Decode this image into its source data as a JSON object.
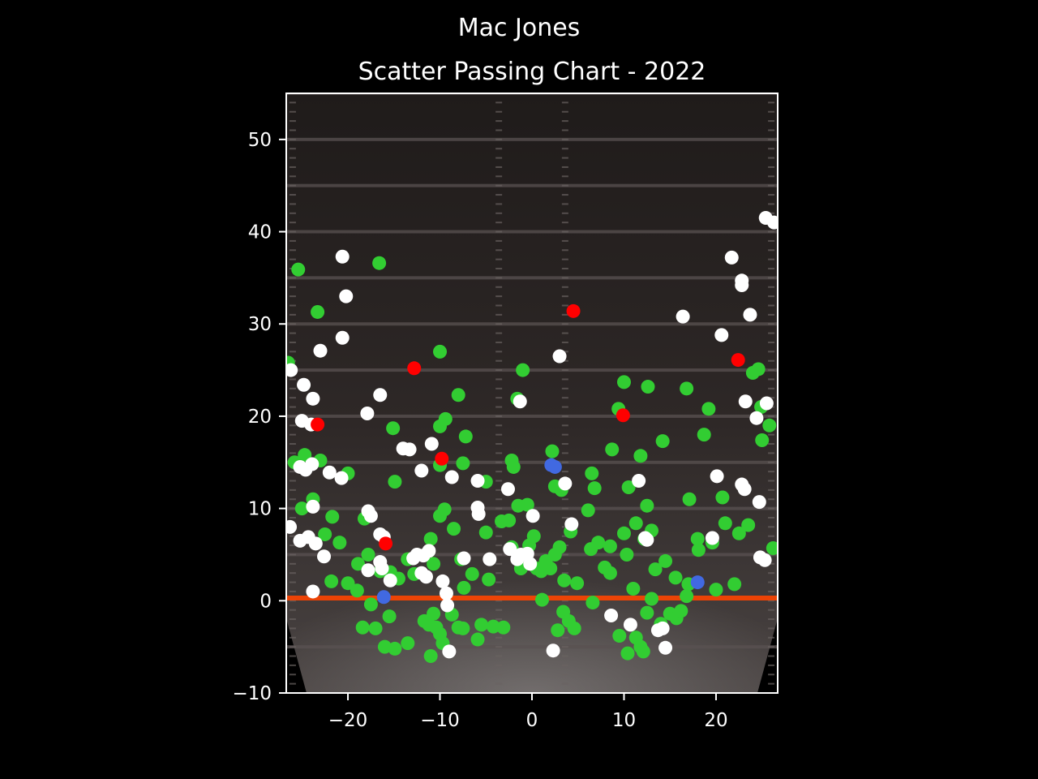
{
  "chart_data": {
    "type": "scatter",
    "title": "Mac Jones",
    "subtitle": "Scatter Passing Chart - 2022",
    "xlabel": "",
    "ylabel": "",
    "xlim": [
      -26.7,
      26.7
    ],
    "ylim": [
      -10,
      55
    ],
    "xticks": [
      -20,
      -10,
      0,
      10,
      20
    ],
    "yticks": [
      -10,
      0,
      10,
      20,
      30,
      40,
      50
    ],
    "grid": false,
    "background": "football-field",
    "colors": {
      "complete": "#32cd32",
      "incomplete": "#ffffff",
      "interception": "#ff0000",
      "touchdown": "#4169e1",
      "axis": "#ffffff",
      "line_of_scrimmage": "#ff4500"
    },
    "series": [
      {
        "key": "complete",
        "color": "#32cd32",
        "points": [
          [
            -25.4,
            35.9
          ],
          [
            -16.6,
            36.6
          ],
          [
            -23.3,
            31.3
          ],
          [
            -10.0,
            27.0
          ],
          [
            -8.0,
            22.3
          ],
          [
            -1.6,
            21.9
          ],
          [
            -1.0,
            25.0
          ],
          [
            -15.1,
            18.7
          ],
          [
            -9.4,
            19.7
          ],
          [
            -7.2,
            17.8
          ],
          [
            -10.0,
            18.9
          ],
          [
            -25.8,
            15.0
          ],
          [
            -24.7,
            15.8
          ],
          [
            -23.0,
            15.2
          ],
          [
            -20.0,
            13.8
          ],
          [
            -10.0,
            14.7
          ],
          [
            -7.5,
            14.9
          ],
          [
            -5.0,
            12.9
          ],
          [
            -2.2,
            15.2
          ],
          [
            -2.0,
            14.5
          ],
          [
            -14.9,
            12.9
          ],
          [
            -25.0,
            10.0
          ],
          [
            -23.8,
            11.0
          ],
          [
            -22.5,
            7.2
          ],
          [
            -20.9,
            6.3
          ],
          [
            -21.7,
            9.1
          ],
          [
            -18.2,
            8.9
          ],
          [
            -18.9,
            4.0
          ],
          [
            -17.8,
            5.0
          ],
          [
            -16.5,
            3.2
          ],
          [
            -15.4,
            3.1
          ],
          [
            -14.5,
            2.4
          ],
          [
            -13.5,
            4.5
          ],
          [
            -12.8,
            2.9
          ],
          [
            -11.0,
            6.7
          ],
          [
            -10.7,
            4.0
          ],
          [
            -10.0,
            9.2
          ],
          [
            -9.5,
            9.9
          ],
          [
            -8.5,
            7.8
          ],
          [
            -7.7,
            4.5
          ],
          [
            -7.4,
            1.4
          ],
          [
            -6.5,
            2.9
          ],
          [
            -5.0,
            7.4
          ],
          [
            -4.7,
            2.3
          ],
          [
            -3.3,
            8.6
          ],
          [
            -2.5,
            8.7
          ],
          [
            -2.2,
            5.8
          ],
          [
            -1.5,
            10.3
          ],
          [
            -0.5,
            10.4
          ],
          [
            -0.3,
            6.0
          ],
          [
            0.2,
            7.0
          ],
          [
            -1.2,
            3.5
          ],
          [
            0.5,
            3.5
          ],
          [
            1.0,
            3.2
          ],
          [
            1.5,
            4.3
          ],
          [
            2.0,
            3.5
          ],
          [
            2.5,
            5.0
          ],
          [
            3.0,
            5.8
          ],
          [
            3.2,
            12.0
          ],
          [
            2.2,
            16.2
          ],
          [
            2.5,
            12.4
          ],
          [
            3.5,
            2.2
          ],
          [
            4.2,
            7.5
          ],
          [
            4.9,
            1.9
          ],
          [
            6.1,
            9.8
          ],
          [
            6.4,
            5.6
          ],
          [
            6.5,
            13.8
          ],
          [
            6.8,
            12.2
          ],
          [
            7.2,
            6.3
          ],
          [
            7.9,
            3.6
          ],
          [
            8.5,
            5.9
          ],
          [
            8.5,
            3.0
          ],
          [
            8.7,
            16.4
          ],
          [
            9.4,
            20.8
          ],
          [
            10.0,
            7.3
          ],
          [
            10.0,
            23.7
          ],
          [
            10.3,
            5.0
          ],
          [
            10.5,
            12.3
          ],
          [
            11.0,
            1.3
          ],
          [
            11.3,
            8.4
          ],
          [
            11.8,
            15.7
          ],
          [
            12.2,
            6.7
          ],
          [
            12.5,
            10.3
          ],
          [
            12.6,
            23.2
          ],
          [
            13.0,
            7.6
          ],
          [
            13.4,
            3.4
          ],
          [
            14.2,
            17.3
          ],
          [
            14.5,
            4.3
          ],
          [
            15.6,
            2.5
          ],
          [
            16.8,
            23.0
          ],
          [
            17.1,
            11.0
          ],
          [
            17.0,
            1.8
          ],
          [
            18.0,
            6.7
          ],
          [
            18.1,
            5.5
          ],
          [
            18.7,
            18.0
          ],
          [
            19.2,
            20.8
          ],
          [
            19.6,
            6.3
          ],
          [
            20.0,
            1.2
          ],
          [
            20.7,
            11.2
          ],
          [
            21.0,
            8.4
          ],
          [
            22.0,
            1.8
          ],
          [
            22.5,
            7.3
          ],
          [
            23.5,
            8.2
          ],
          [
            24.0,
            24.7
          ],
          [
            24.6,
            25.1
          ],
          [
            24.9,
            21.0
          ],
          [
            25.0,
            17.4
          ],
          [
            25.8,
            19.0
          ],
          [
            26.2,
            5.7
          ],
          [
            -26.5,
            25.8
          ],
          [
            -21.8,
            2.1
          ],
          [
            -20.0,
            1.9
          ],
          [
            -19.0,
            1.1
          ],
          [
            -18.4,
            -2.9
          ],
          [
            -17.5,
            -0.4
          ],
          [
            -17.0,
            -3.0
          ],
          [
            -16.0,
            -5.0
          ],
          [
            -15.5,
            -1.7
          ],
          [
            -14.9,
            -5.2
          ],
          [
            -13.5,
            -4.6
          ],
          [
            -11.7,
            -2.2
          ],
          [
            -11.2,
            -2.6
          ],
          [
            -11.0,
            -6.0
          ],
          [
            -10.7,
            -1.4
          ],
          [
            -10.4,
            -2.9
          ],
          [
            -10.0,
            -3.6
          ],
          [
            -9.7,
            -4.6
          ],
          [
            -8.7,
            -1.5
          ],
          [
            -8.0,
            -2.9
          ],
          [
            -7.5,
            -3.0
          ],
          [
            -5.9,
            -4.2
          ],
          [
            -5.5,
            -2.6
          ],
          [
            -4.2,
            -2.8
          ],
          [
            -3.1,
            -2.9
          ],
          [
            1.1,
            0.1
          ],
          [
            2.8,
            -3.2
          ],
          [
            3.4,
            -1.2
          ],
          [
            4.0,
            -2.2
          ],
          [
            4.6,
            -3.0
          ],
          [
            6.6,
            -0.2
          ],
          [
            9.5,
            -3.8
          ],
          [
            10.4,
            -5.7
          ],
          [
            11.3,
            -4.0
          ],
          [
            11.8,
            -5.0
          ],
          [
            12.1,
            -5.5
          ],
          [
            12.5,
            -1.3
          ],
          [
            13.0,
            0.2
          ],
          [
            14.0,
            -2.5
          ],
          [
            15.0,
            -1.4
          ],
          [
            15.7,
            -1.9
          ],
          [
            16.2,
            -1.1
          ],
          [
            16.8,
            0.5
          ]
        ]
      },
      {
        "key": "incomplete",
        "color": "#ffffff",
        "points": [
          [
            -20.6,
            37.3
          ],
          [
            -20.2,
            33.0
          ],
          [
            -20.6,
            28.5
          ],
          [
            -23.0,
            27.1
          ],
          [
            -26.2,
            25.0
          ],
          [
            -24.8,
            23.4
          ],
          [
            -23.8,
            21.9
          ],
          [
            -25.0,
            19.5
          ],
          [
            -24.0,
            19.1
          ],
          [
            -17.9,
            20.3
          ],
          [
            -16.5,
            22.3
          ],
          [
            -25.2,
            14.5
          ],
          [
            -24.6,
            14.2
          ],
          [
            -23.9,
            14.8
          ],
          [
            -22.0,
            13.9
          ],
          [
            -20.7,
            13.3
          ],
          [
            -14.0,
            16.5
          ],
          [
            -13.3,
            16.4
          ],
          [
            -10.9,
            17.0
          ],
          [
            -12.0,
            14.1
          ],
          [
            -8.7,
            13.4
          ],
          [
            -5.9,
            13.0
          ],
          [
            -23.8,
            10.2
          ],
          [
            -17.8,
            9.7
          ],
          [
            -17.5,
            9.2
          ],
          [
            -16.5,
            7.2
          ],
          [
            -16.1,
            6.9
          ],
          [
            -16.5,
            4.2
          ],
          [
            -16.3,
            3.5
          ],
          [
            -17.8,
            3.3
          ],
          [
            -15.4,
            2.2
          ],
          [
            -12.9,
            4.6
          ],
          [
            -12.5,
            5.0
          ],
          [
            -11.8,
            4.9
          ],
          [
            -11.2,
            5.4
          ],
          [
            -12.0,
            3.0
          ],
          [
            -11.5,
            2.6
          ],
          [
            -9.7,
            2.1
          ],
          [
            -9.3,
            0.8
          ],
          [
            -9.2,
            -0.5
          ],
          [
            -7.4,
            4.6
          ],
          [
            -5.9,
            10.1
          ],
          [
            -5.8,
            9.4
          ],
          [
            -4.6,
            4.5
          ],
          [
            -2.6,
            12.1
          ],
          [
            -2.4,
            5.6
          ],
          [
            -1.6,
            4.5
          ],
          [
            -1.2,
            5.0
          ],
          [
            -0.5,
            5.1
          ],
          [
            -0.2,
            4.0
          ],
          [
            0.1,
            9.2
          ],
          [
            3.0,
            26.5
          ],
          [
            -1.3,
            21.6
          ],
          [
            3.6,
            12.7
          ],
          [
            4.3,
            8.3
          ],
          [
            11.6,
            13.0
          ],
          [
            12.3,
            6.8
          ],
          [
            12.5,
            6.6
          ],
          [
            16.4,
            30.8
          ],
          [
            20.6,
            28.8
          ],
          [
            21.7,
            37.2
          ],
          [
            22.8,
            34.7
          ],
          [
            22.8,
            34.2
          ],
          [
            23.7,
            31.0
          ],
          [
            23.2,
            21.6
          ],
          [
            24.4,
            19.8
          ],
          [
            25.5,
            21.4
          ],
          [
            25.4,
            41.5
          ],
          [
            26.3,
            41.0
          ],
          [
            20.1,
            13.5
          ],
          [
            22.8,
            12.6
          ],
          [
            23.1,
            12.1
          ],
          [
            24.7,
            10.7
          ],
          [
            19.6,
            6.8
          ],
          [
            24.8,
            4.7
          ],
          [
            25.3,
            4.4
          ],
          [
            -26.3,
            8.0
          ],
          [
            -25.2,
            6.5
          ],
          [
            -24.3,
            6.9
          ],
          [
            -23.5,
            6.2
          ],
          [
            -22.6,
            4.8
          ],
          [
            -23.8,
            1.0
          ],
          [
            8.6,
            -1.6
          ],
          [
            10.7,
            -2.6
          ],
          [
            13.7,
            -3.2
          ],
          [
            14.2,
            -3.0
          ],
          [
            14.5,
            -5.1
          ],
          [
            -9.0,
            -5.5
          ],
          [
            2.3,
            -5.4
          ]
        ]
      },
      {
        "key": "interception",
        "color": "#ff0000",
        "points": [
          [
            4.5,
            31.4
          ],
          [
            -12.8,
            25.2
          ],
          [
            22.4,
            26.1
          ],
          [
            9.9,
            20.1
          ],
          [
            -23.3,
            19.1
          ],
          [
            -9.8,
            15.4
          ],
          [
            -15.9,
            6.2
          ]
        ]
      },
      {
        "key": "touchdown",
        "color": "#4169e1",
        "points": [
          [
            2.1,
            14.7
          ],
          [
            2.5,
            14.5
          ],
          [
            -16.1,
            0.4
          ],
          [
            18.0,
            2.0
          ]
        ]
      }
    ]
  }
}
